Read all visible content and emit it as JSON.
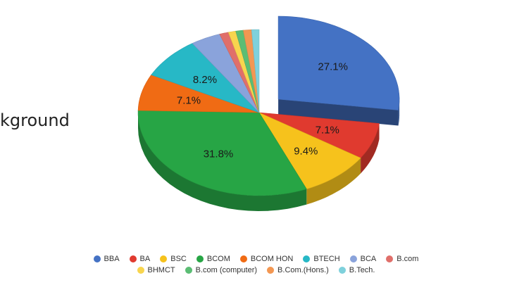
{
  "side_text": "kground",
  "chart_data": {
    "type": "pie",
    "title": "",
    "legend_position": "bottom",
    "slices": [
      {
        "name": "BBA",
        "value": 27.1,
        "label": "27.1%",
        "color": "#4472c4",
        "exploded": true
      },
      {
        "name": "BA",
        "value": 7.1,
        "label": "7.1%",
        "color": "#e03a2f"
      },
      {
        "name": "BSC",
        "value": 9.4,
        "label": "9.4%",
        "color": "#f6c21c"
      },
      {
        "name": "BCOM",
        "value": 31.8,
        "label": "31.8%",
        "color": "#27a545"
      },
      {
        "name": "BCOM HON",
        "value": 7.1,
        "label": "7.1%",
        "color": "#f06b14"
      },
      {
        "name": "BTECH",
        "value": 8.2,
        "label": "8.2%",
        "color": "#27b8c6"
      },
      {
        "name": "BCA",
        "value": 4.0,
        "label": "",
        "color": "#8aa3db"
      },
      {
        "name": "B.com",
        "value": 1.2,
        "label": "",
        "color": "#e06f6a"
      },
      {
        "name": "BHMCT",
        "value": 1.0,
        "label": "",
        "color": "#f8d54e"
      },
      {
        "name": "B.com (computer)",
        "value": 1.0,
        "label": "",
        "color": "#5bbd74"
      },
      {
        "name": "B.Com.(Hons.)",
        "value": 1.1,
        "label": "",
        "color": "#f39752"
      },
      {
        "name": "B.Tech.",
        "value": 1.0,
        "label": "",
        "color": "#7fd1dc"
      }
    ],
    "legend_rows": [
      [
        "BBA",
        "BA",
        "BSC",
        "BCOM",
        "BCOM HON",
        "BTECH",
        "BCA",
        "B.com"
      ],
      [
        "BHMCT",
        "B.com (computer)",
        "B.Com.(Hons.)",
        "B.Tech."
      ]
    ]
  }
}
